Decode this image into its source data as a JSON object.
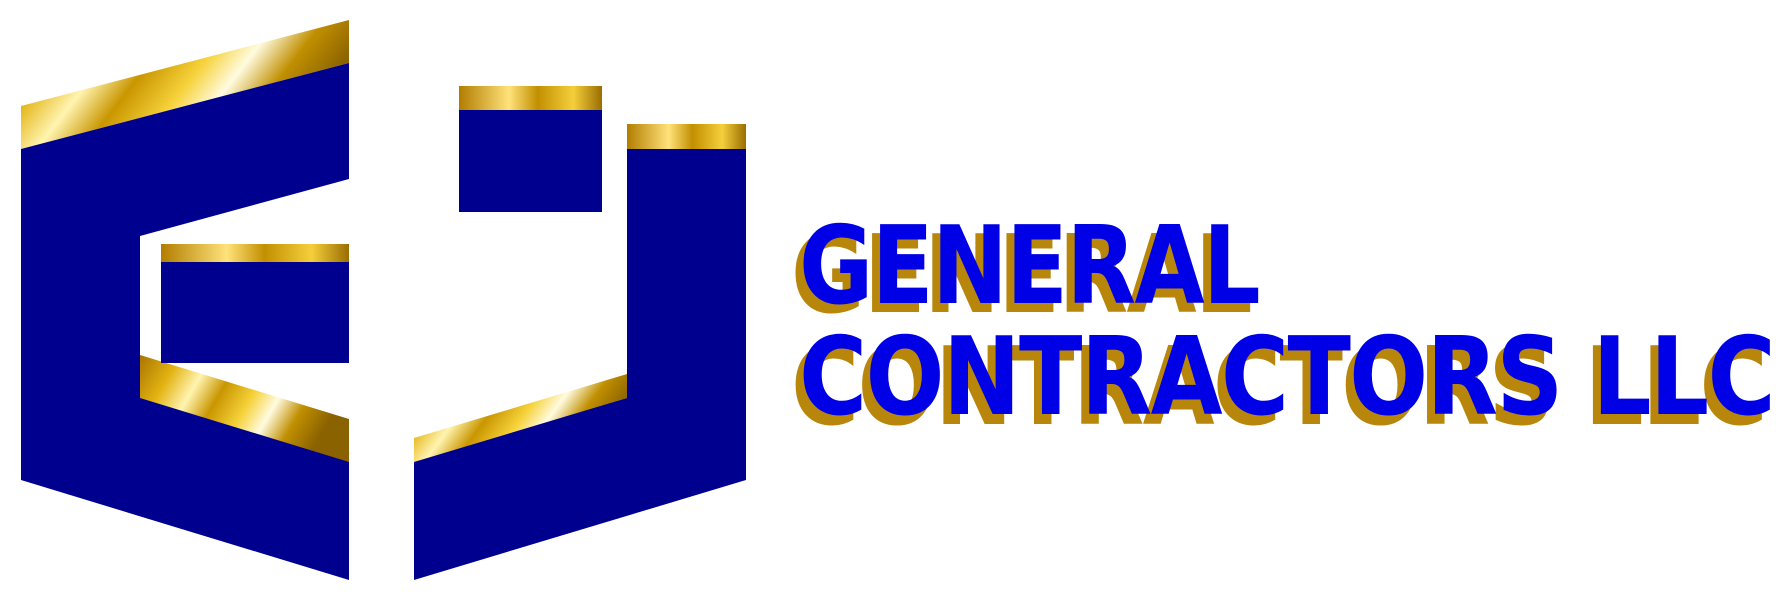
{
  "brand": {
    "line1": "GENERAL",
    "line2": "CONTRACTORS LLC"
  },
  "colors": {
    "primary_blue": "#0000e6",
    "navy": "#00008f",
    "gold_dark": "#b8860b",
    "gold_light": "#ffd700",
    "background": "#ffffff"
  }
}
